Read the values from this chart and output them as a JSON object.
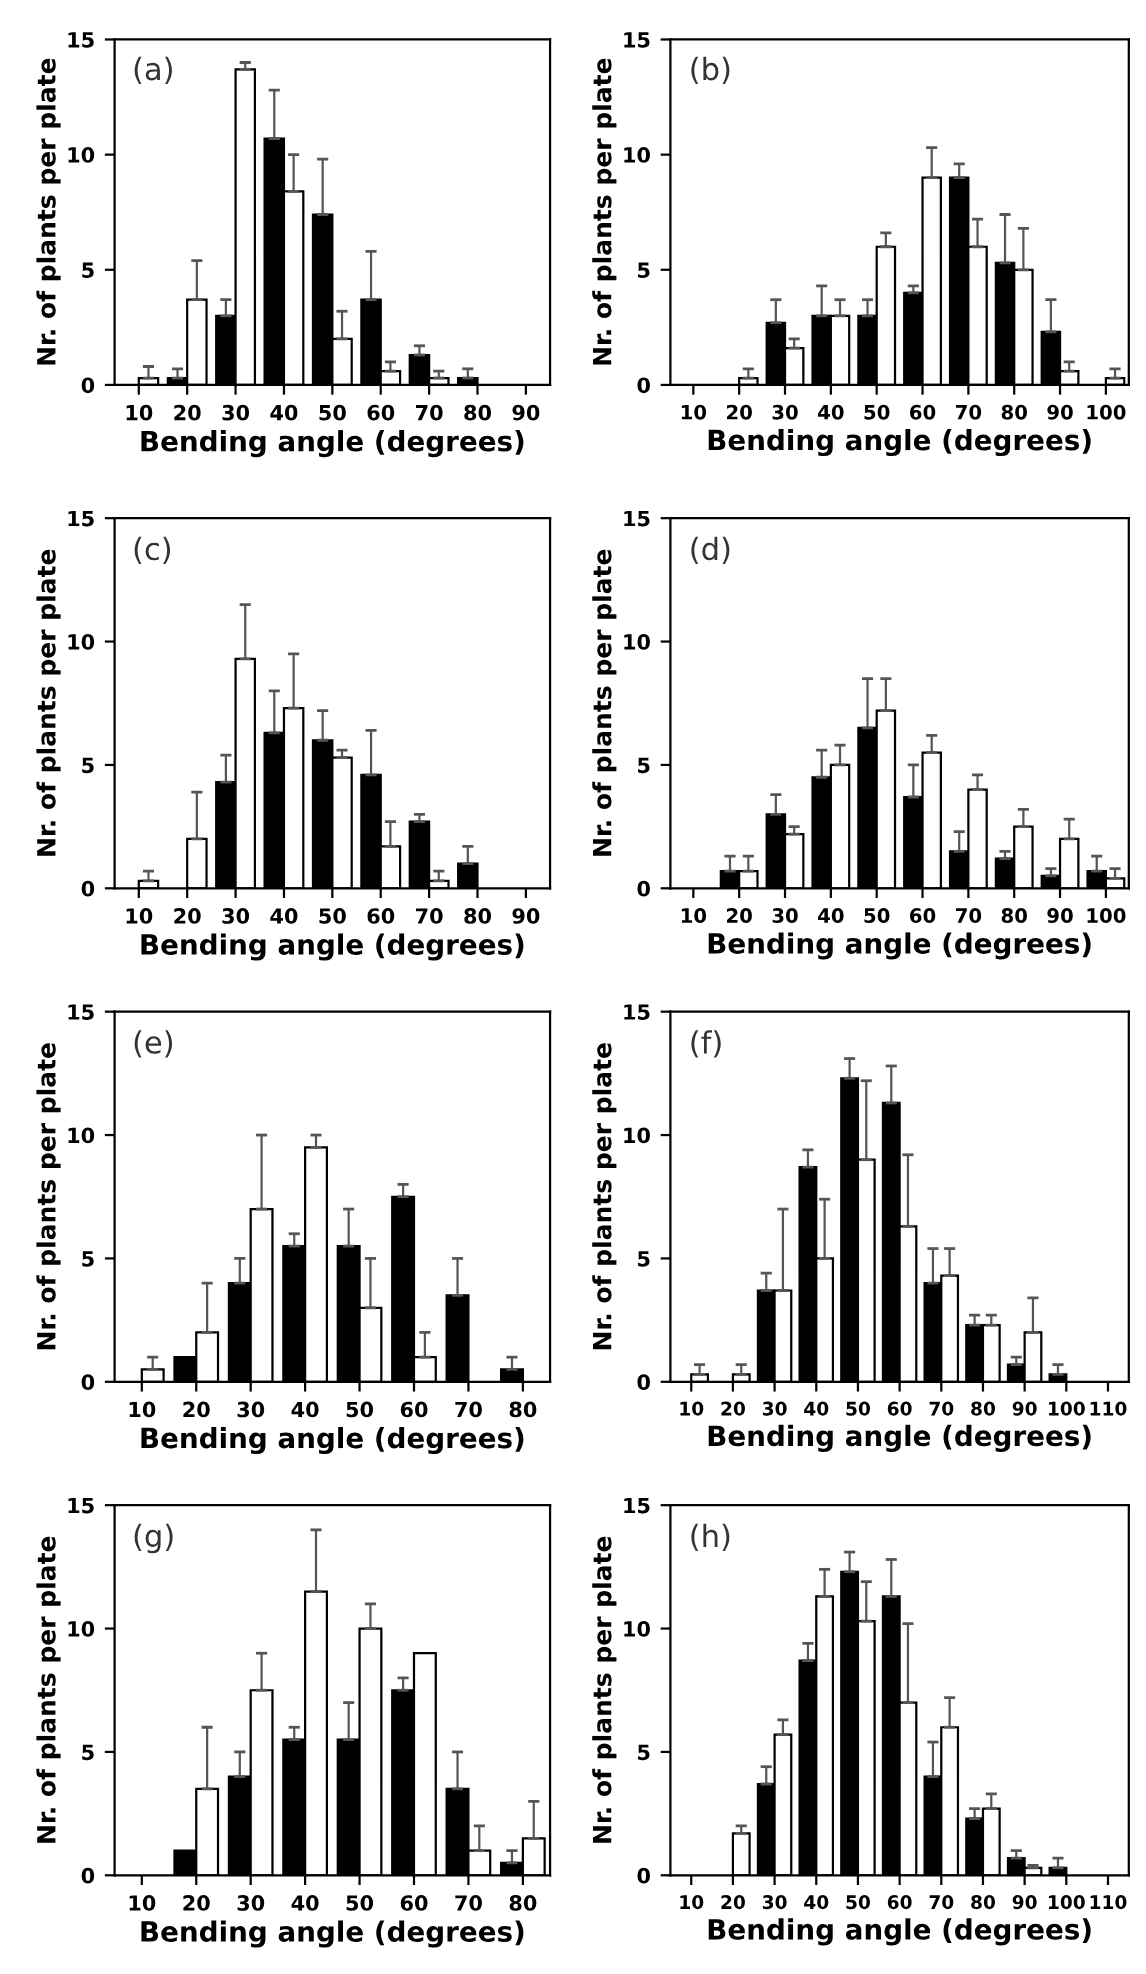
{
  "chart_data": [
    {
      "type": "bar",
      "xlabel": "Bending angle (degrees)",
      "ylabel": "Nr. of plants per plate",
      "annotations": [
        "(a)"
      ],
      "categories": [
        "10",
        "20",
        "30",
        "40",
        "50",
        "60",
        "70",
        "80",
        "90"
      ],
      "ylim": [
        0,
        15
      ],
      "yticks": [
        0,
        5,
        10,
        15
      ],
      "grid": false,
      "series": [
        {
          "color": "#000000",
          "values": [
            null,
            0.3,
            3.0,
            10.7,
            7.4,
            3.7,
            1.3,
            0.3,
            null
          ],
          "errors": [
            null,
            [
              0.3,
              0.7
            ],
            [
              3.0,
              3.7
            ],
            [
              10.7,
              12.8
            ],
            [
              7.4,
              9.8
            ],
            [
              3.7,
              5.8
            ],
            [
              1.3,
              1.7
            ],
            [
              0.3,
              0.7
            ],
            null
          ]
        },
        {
          "color": "#ffffff",
          "values": [
            0.3,
            3.7,
            13.7,
            8.4,
            2.0,
            0.6,
            0.3,
            null,
            null
          ],
          "errors": [
            [
              0.3,
              0.8
            ],
            [
              3.7,
              5.4
            ],
            [
              13.7,
              14.0
            ],
            [
              8.4,
              10.0
            ],
            [
              2.0,
              3.2
            ],
            [
              0.6,
              1.0
            ],
            [
              0.3,
              0.6
            ],
            null,
            null
          ]
        }
      ]
    },
    {
      "type": "bar",
      "xlabel": "Bending angle (degrees)",
      "ylabel": "Nr. of plants per plate",
      "annotations": [
        "(b)"
      ],
      "categories": [
        "10",
        "20",
        "30",
        "40",
        "50",
        "60",
        "70",
        "80",
        "90",
        "100"
      ],
      "ylim": [
        0,
        15
      ],
      "yticks": [
        0,
        5,
        10,
        15
      ],
      "grid": false,
      "series": [
        {
          "color": "#000000",
          "values": [
            null,
            null,
            2.7,
            3.0,
            3.0,
            4.0,
            9.0,
            5.3,
            2.3,
            null
          ],
          "errors": [
            null,
            null,
            [
              2.7,
              3.7
            ],
            [
              3.0,
              4.3
            ],
            [
              3.0,
              3.7
            ],
            [
              4.0,
              4.3
            ],
            [
              9.0,
              9.6
            ],
            [
              5.3,
              7.4
            ],
            [
              2.3,
              3.7
            ],
            null
          ]
        },
        {
          "color": "#ffffff",
          "values": [
            null,
            0.3,
            1.6,
            3.0,
            6.0,
            9.0,
            6.0,
            5.0,
            0.6,
            0.3
          ],
          "errors": [
            null,
            [
              0.3,
              0.7
            ],
            [
              1.6,
              2.0
            ],
            [
              3.0,
              3.7
            ],
            [
              6.0,
              6.6
            ],
            [
              9.0,
              10.3
            ],
            [
              6.0,
              7.2
            ],
            [
              5.0,
              6.8
            ],
            [
              0.6,
              1.0
            ],
            [
              0.3,
              0.7
            ]
          ]
        }
      ]
    },
    {
      "type": "bar",
      "xlabel": "Bending angle (degrees)",
      "ylabel": "Nr. of plants per plate",
      "annotations": [
        "(c)"
      ],
      "categories": [
        "10",
        "20",
        "30",
        "40",
        "50",
        "60",
        "70",
        "80",
        "90"
      ],
      "ylim": [
        0,
        15
      ],
      "yticks": [
        0,
        5,
        10,
        15
      ],
      "grid": false,
      "series": [
        {
          "color": "#000000",
          "values": [
            null,
            null,
            4.3,
            6.3,
            6.0,
            4.6,
            2.7,
            1.0,
            null
          ],
          "errors": [
            null,
            null,
            [
              4.3,
              5.4
            ],
            [
              6.3,
              8.0
            ],
            [
              6.0,
              7.2
            ],
            [
              4.6,
              6.4
            ],
            [
              2.7,
              3.0
            ],
            [
              1.0,
              1.7
            ],
            null
          ]
        },
        {
          "color": "#ffffff",
          "values": [
            0.3,
            2.0,
            9.3,
            7.3,
            5.3,
            1.7,
            0.3,
            null,
            null
          ],
          "errors": [
            [
              0.3,
              0.7
            ],
            [
              2.0,
              3.9
            ],
            [
              9.3,
              11.5
            ],
            [
              7.3,
              9.5
            ],
            [
              5.3,
              5.6
            ],
            [
              1.7,
              2.7
            ],
            [
              0.3,
              0.7
            ],
            null,
            null
          ]
        }
      ]
    },
    {
      "type": "bar",
      "xlabel": "Bending angle (degrees)",
      "ylabel": "Nr. of plants per plate",
      "annotations": [
        "(d)"
      ],
      "categories": [
        "10",
        "20",
        "30",
        "40",
        "50",
        "60",
        "70",
        "80",
        "90",
        "100"
      ],
      "ylim": [
        0,
        15
      ],
      "yticks": [
        0,
        5,
        10,
        15
      ],
      "grid": false,
      "series": [
        {
          "color": "#000000",
          "values": [
            null,
            0.7,
            3.0,
            4.5,
            6.5,
            3.7,
            1.5,
            1.2,
            0.5,
            0.7
          ],
          "errors": [
            null,
            [
              0.7,
              1.3
            ],
            [
              3.0,
              3.8
            ],
            [
              4.5,
              5.6
            ],
            [
              6.5,
              8.5
            ],
            [
              3.7,
              5.0
            ],
            [
              1.5,
              2.3
            ],
            [
              1.2,
              1.5
            ],
            [
              0.5,
              0.8
            ],
            [
              0.7,
              1.3
            ]
          ]
        },
        {
          "color": "#ffffff",
          "values": [
            null,
            0.7,
            2.2,
            5.0,
            7.2,
            5.5,
            4.0,
            2.5,
            2.0,
            0.4
          ],
          "errors": [
            null,
            [
              0.7,
              1.3
            ],
            [
              2.2,
              2.5
            ],
            [
              5.0,
              5.8
            ],
            [
              7.2,
              8.5
            ],
            [
              5.5,
              6.2
            ],
            [
              4.0,
              4.6
            ],
            [
              2.5,
              3.2
            ],
            [
              2.0,
              2.8
            ],
            [
              0.4,
              0.8
            ]
          ]
        }
      ]
    },
    {
      "type": "bar",
      "xlabel": "Bending angle (degrees)",
      "ylabel": "Nr. of plants per plate",
      "annotations": [
        "(e)"
      ],
      "categories": [
        "10",
        "20",
        "30",
        "40",
        "50",
        "60",
        "70",
        "80"
      ],
      "ylim": [
        0,
        15
      ],
      "yticks": [
        0,
        5,
        10,
        15
      ],
      "grid": false,
      "series": [
        {
          "color": "#000000",
          "values": [
            null,
            1.0,
            4.0,
            5.5,
            5.5,
            7.5,
            3.5,
            0.5
          ],
          "errors": [
            null,
            null,
            [
              4.0,
              5.0
            ],
            [
              5.5,
              6.0
            ],
            [
              5.5,
              7.0
            ],
            [
              7.5,
              8.0
            ],
            [
              3.5,
              5.0
            ],
            [
              0.5,
              1.0
            ]
          ]
        },
        {
          "color": "#ffffff",
          "values": [
            0.5,
            2.0,
            7.0,
            9.5,
            3.0,
            1.0,
            null,
            null
          ],
          "errors": [
            [
              0.5,
              1.0
            ],
            [
              2.0,
              4.0
            ],
            [
              7.0,
              10.0
            ],
            [
              9.5,
              10.0
            ],
            [
              3.0,
              5.0
            ],
            [
              1.0,
              2.0
            ],
            null,
            null
          ]
        }
      ]
    },
    {
      "type": "bar",
      "xlabel": "Bending angle (degrees)",
      "ylabel": "Nr. of plants per plate",
      "annotations": [
        "(f)"
      ],
      "categories": [
        "10",
        "20",
        "30",
        "40",
        "50",
        "60",
        "70",
        "80",
        "90",
        "100",
        "110"
      ],
      "ylim": [
        0,
        15
      ],
      "yticks": [
        0,
        5,
        10,
        15
      ],
      "grid": false,
      "series": [
        {
          "color": "#000000",
          "values": [
            null,
            null,
            3.7,
            8.7,
            12.3,
            11.3,
            4.0,
            2.3,
            0.7,
            0.3,
            null
          ],
          "errors": [
            null,
            null,
            [
              3.7,
              4.4
            ],
            [
              8.7,
              9.4
            ],
            [
              12.3,
              13.1
            ],
            [
              11.3,
              12.8
            ],
            [
              4.0,
              5.4
            ],
            [
              2.3,
              2.7
            ],
            [
              0.7,
              1.0
            ],
            [
              0.3,
              0.7
            ],
            null
          ]
        },
        {
          "color": "#ffffff",
          "values": [
            0.3,
            0.3,
            3.7,
            5.0,
            9.0,
            6.3,
            4.3,
            2.3,
            2.0,
            null,
            null
          ],
          "errors": [
            [
              0.3,
              0.7
            ],
            [
              0.3,
              0.7
            ],
            [
              3.7,
              7.0
            ],
            [
              5.0,
              7.4
            ],
            [
              9.0,
              12.2
            ],
            [
              6.3,
              9.2
            ],
            [
              4.3,
              5.4
            ],
            [
              2.3,
              2.7
            ],
            [
              2.0,
              3.4
            ],
            null,
            null
          ]
        }
      ]
    },
    {
      "type": "bar",
      "xlabel": "Bending angle (degrees)",
      "ylabel": "Nr. of plants per plate",
      "annotations": [
        "(g)"
      ],
      "categories": [
        "10",
        "20",
        "30",
        "40",
        "50",
        "60",
        "70",
        "80"
      ],
      "ylim": [
        0,
        15
      ],
      "yticks": [
        0,
        5,
        10,
        15
      ],
      "grid": false,
      "series": [
        {
          "color": "#000000",
          "values": [
            null,
            1.0,
            4.0,
            5.5,
            5.5,
            7.5,
            3.5,
            0.5
          ],
          "errors": [
            null,
            null,
            [
              4.0,
              5.0
            ],
            [
              5.5,
              6.0
            ],
            [
              5.5,
              7.0
            ],
            [
              7.5,
              8.0
            ],
            [
              3.5,
              5.0
            ],
            [
              0.5,
              1.0
            ]
          ]
        },
        {
          "color": "#ffffff",
          "values": [
            null,
            3.5,
            7.5,
            11.5,
            10.0,
            9.0,
            1.0,
            1.5
          ],
          "errors": [
            null,
            [
              3.5,
              6.0
            ],
            [
              7.5,
              9.0
            ],
            [
              11.5,
              14.0
            ],
            [
              10.0,
              11.0
            ],
            null,
            [
              1.0,
              2.0
            ],
            [
              1.5,
              3.0
            ]
          ]
        }
      ]
    },
    {
      "type": "bar",
      "xlabel": "Bending angle (degrees)",
      "ylabel": "Nr. of plants per plate",
      "annotations": [
        "(h)"
      ],
      "categories": [
        "10",
        "20",
        "30",
        "40",
        "50",
        "60",
        "70",
        "80",
        "90",
        "100",
        "110"
      ],
      "ylim": [
        0,
        15
      ],
      "yticks": [
        0,
        5,
        10,
        15
      ],
      "grid": false,
      "series": [
        {
          "color": "#000000",
          "values": [
            null,
            null,
            3.7,
            8.7,
            12.3,
            11.3,
            4.0,
            2.3,
            0.7,
            0.3,
            null
          ],
          "errors": [
            null,
            null,
            [
              3.7,
              4.4
            ],
            [
              8.7,
              9.4
            ],
            [
              12.3,
              13.1
            ],
            [
              11.3,
              12.8
            ],
            [
              4.0,
              5.4
            ],
            [
              2.3,
              2.7
            ],
            [
              0.7,
              1.0
            ],
            [
              0.3,
              0.7
            ],
            null
          ]
        },
        {
          "color": "#ffffff",
          "values": [
            null,
            1.7,
            5.7,
            11.3,
            10.3,
            7.0,
            6.0,
            2.7,
            0.3,
            null,
            null
          ],
          "errors": [
            null,
            [
              1.7,
              2.0
            ],
            [
              5.7,
              6.3
            ],
            [
              11.3,
              12.4
            ],
            [
              10.3,
              11.9
            ],
            [
              7.0,
              10.2
            ],
            [
              6.0,
              7.2
            ],
            [
              2.7,
              3.3
            ],
            [
              0.3,
              0.4
            ],
            null,
            null
          ]
        }
      ]
    }
  ]
}
